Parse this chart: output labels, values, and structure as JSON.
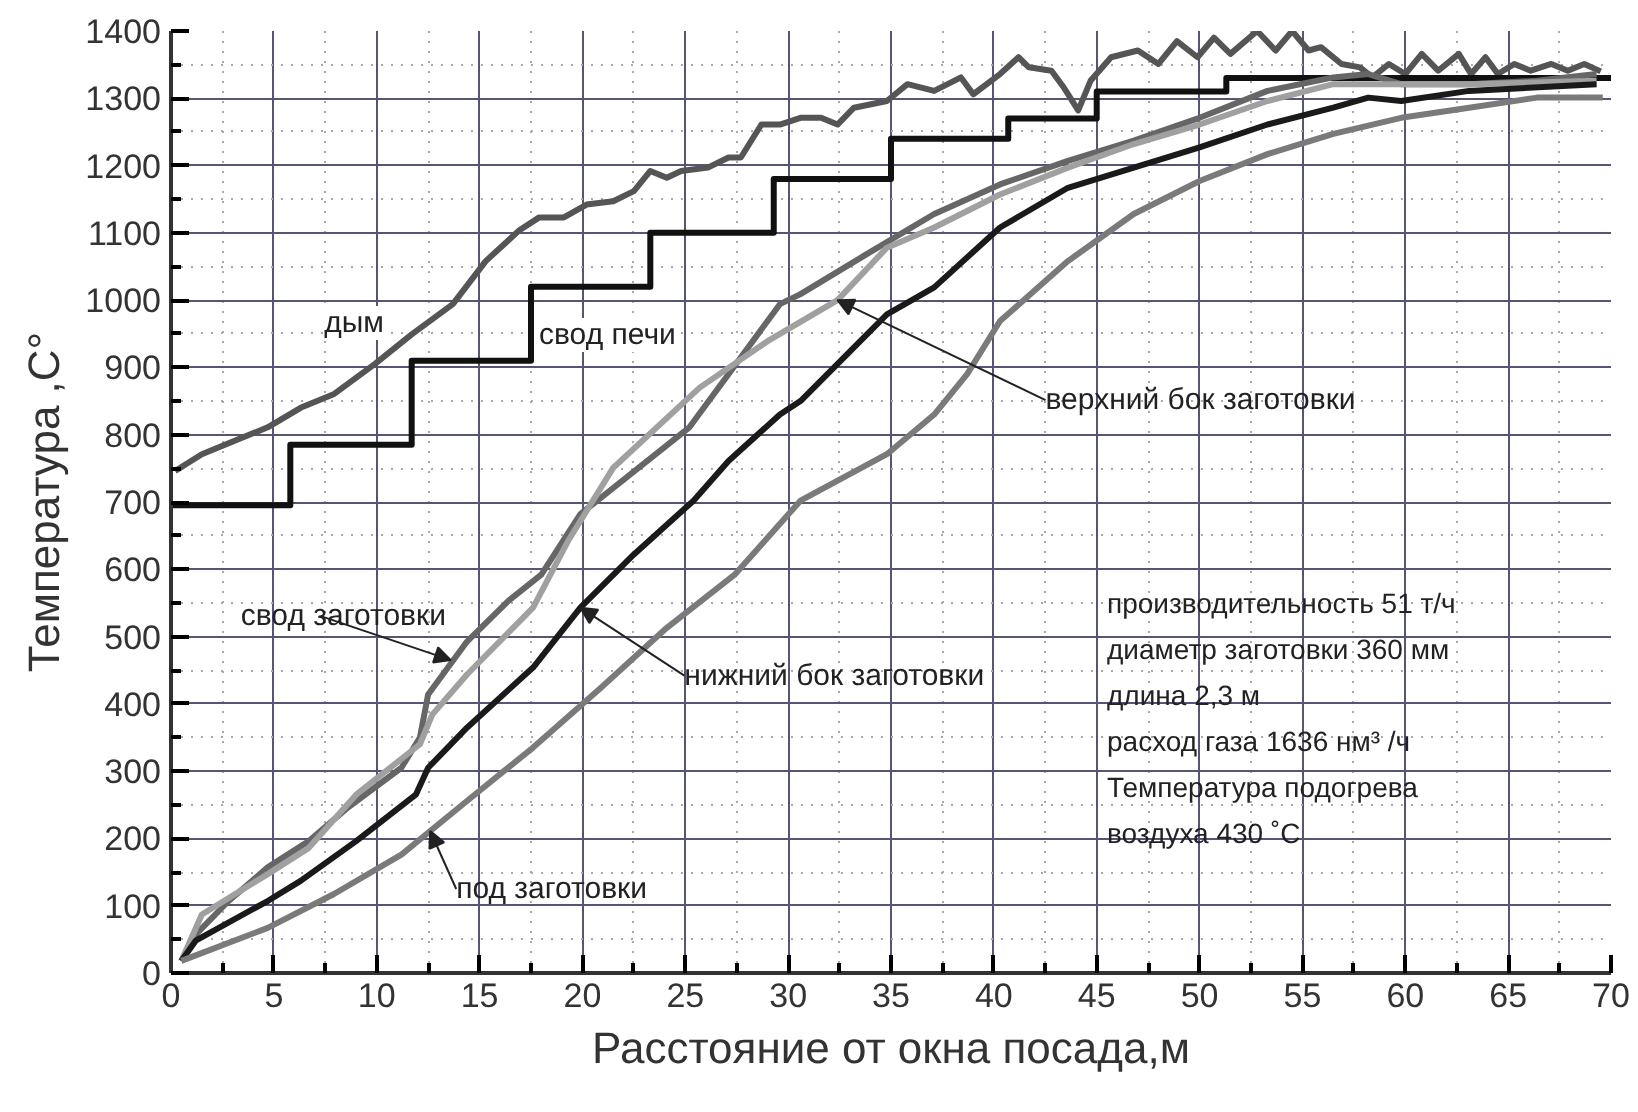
{
  "chart_data": {
    "type": "line",
    "xlabel": "Расстояние от окна посада,м",
    "ylabel": "Температура ,С°",
    "xlim": [
      0,
      70
    ],
    "ylim": [
      0,
      1400
    ],
    "xticks": [
      0,
      5,
      10,
      15,
      20,
      25,
      30,
      35,
      40,
      45,
      50,
      55,
      60,
      65,
      70
    ],
    "yticks": [
      0,
      100,
      200,
      300,
      400,
      500,
      600,
      700,
      800,
      900,
      1000,
      1100,
      1200,
      1300,
      1400
    ],
    "grid": true,
    "marker": "none",
    "line_style": "solid",
    "series": [
      {
        "color": "#555555",
        "x": [
          0.2,
          1.5,
          4.7,
          6.3,
          7.9,
          9.9,
          11.7,
          13.7,
          15.3,
          16.9,
          17.9,
          19.1,
          20.2,
          21.5,
          22.5,
          23.3,
          24.1,
          24.8,
          26.1,
          27.1,
          27.7,
          28.7,
          29.6,
          30.6,
          31.6,
          32.4,
          33.2,
          34.8,
          35.8,
          37.1,
          38.4,
          39.0,
          40.3,
          41.2,
          41.7,
          42.8,
          43.4,
          44.1,
          44.7,
          45.7,
          47.0,
          48.0,
          48.9,
          49.9,
          50.7,
          51.5,
          52.8,
          53.7,
          54.5,
          55.3,
          55.9,
          56.9,
          57.8,
          58.4,
          59.2,
          60.0,
          60.8,
          61.6,
          62.6,
          63.2,
          63.9,
          64.5,
          65.3,
          66.1,
          67.1,
          67.9,
          68.7,
          69.5
        ],
        "values": [
          746,
          771,
          811,
          840,
          860,
          905,
          949,
          994,
          1058,
          1103,
          1123,
          1123,
          1142,
          1147,
          1162,
          1192,
          1182,
          1192,
          1197,
          1212,
          1212,
          1261,
          1261,
          1271,
          1271,
          1261,
          1286,
          1296,
          1321,
          1311,
          1331,
          1306,
          1336,
          1361,
          1346,
          1341,
          1316,
          1282,
          1326,
          1361,
          1371,
          1351,
          1385,
          1361,
          1390,
          1366,
          1400,
          1371,
          1400,
          1371,
          1376,
          1351,
          1346,
          1331,
          1351,
          1336,
          1366,
          1341,
          1366,
          1336,
          1361,
          1336,
          1351,
          1341,
          1351,
          1341,
          1351,
          1340
        ]
      },
      {
        "type": "step",
        "color": "#111111",
        "x": [
          0,
          5.8,
          11.7,
          17.5,
          23.3,
          29.3,
          35.0,
          40.7,
          45.0,
          51.3,
          70
        ],
        "values": [
          695,
          785,
          910,
          1020,
          1100,
          1180,
          1240,
          1270,
          1310,
          1330,
          1330
        ]
      },
      {
        "color": "#666666",
        "x": [
          0.5,
          1.2,
          2.8,
          4.7,
          6.7,
          8.6,
          11.2,
          12.1,
          12.5,
          14.4,
          16.4,
          18.0,
          19.9,
          25.2,
          27.1,
          29.6,
          30.6,
          33.8,
          37.1,
          40.3,
          43.6,
          46.8,
          50.0,
          53.3,
          56.5,
          58.2,
          59.8,
          63.1,
          66.4,
          69.3
        ],
        "values": [
          18,
          57,
          107,
          157,
          196,
          246,
          305,
          350,
          414,
          493,
          553,
          592,
          682,
          811,
          890,
          994,
          1009,
          1068,
          1128,
          1172,
          1207,
          1237,
          1271,
          1311,
          1331,
          1336,
          1321,
          1321,
          1326,
          1336
        ]
      },
      {
        "color": "#a0a0a0",
        "x": [
          0.5,
          1.5,
          4.7,
          6.7,
          9.0,
          12.1,
          12.7,
          14.4,
          17.6,
          19.3,
          21.5,
          25.7,
          29.0,
          32.4,
          34.8,
          37.1,
          40.3,
          43.6,
          46.8,
          50.0,
          53.3,
          56.5,
          59.8,
          63.1,
          69.3
        ],
        "values": [
          18,
          87,
          147,
          186,
          265,
          340,
          384,
          444,
          543,
          642,
          751,
          870,
          939,
          1000,
          1078,
          1108,
          1157,
          1197,
          1232,
          1261,
          1296,
          1321,
          1321,
          1321,
          1326
        ]
      },
      {
        "color": "#1a1a1a",
        "x": [
          0.5,
          1.2,
          4.7,
          6.3,
          9.0,
          11.9,
          12.5,
          14.4,
          17.6,
          19.9,
          22.5,
          25.4,
          27.1,
          29.6,
          30.6,
          34.8,
          37.1,
          40.3,
          43.6,
          46.8,
          50.0,
          53.3,
          56.5,
          58.2,
          59.8,
          63.1,
          69.3
        ],
        "values": [
          18,
          48,
          107,
          137,
          196,
          265,
          305,
          365,
          454,
          543,
          622,
          702,
          761,
          830,
          850,
          979,
          1019,
          1108,
          1167,
          1197,
          1227,
          1261,
          1286,
          1301,
          1296,
          1311,
          1321
        ]
      },
      {
        "color": "#7a7a7a",
        "x": [
          0.5,
          4.7,
          7.9,
          11.2,
          14.4,
          17.6,
          20.9,
          24.1,
          27.4,
          30.6,
          34.8,
          37.1,
          38.7,
          40.3,
          43.6,
          46.8,
          50.0,
          53.3,
          56.5,
          59.8,
          63.1,
          66.4,
          69.6
        ],
        "values": [
          18,
          67,
          117,
          176,
          256,
          335,
          424,
          513,
          592,
          702,
          771,
          830,
          890,
          969,
          1058,
          1128,
          1177,
          1217,
          1247,
          1271,
          1286,
          1301,
          1301
        ]
      }
    ],
    "annotations": [
      {
        "text": "дым",
        "x": 12.5,
        "y": 960
      },
      {
        "text": "свод печи",
        "x": 17.5,
        "y": 960
      },
      {
        "text": "свод заготовки",
        "x": 13.6,
        "y": 465
      },
      {
        "text": "верхний бок заготовки",
        "x": 32.4,
        "y": 1000
      },
      {
        "text": "нижний бок заготовки",
        "x": 19.9,
        "y": 543
      },
      {
        "text": "под заготовки",
        "x": 12.6,
        "y": 211
      },
      "производительность 51 т/ч",
      "диаметр заготовки 360 мм",
      "длина 2,3 м",
      "расход газа 1636 нм³ /ч",
      "Температура подогрева",
      "воздуха  430 ˚C"
    ]
  }
}
